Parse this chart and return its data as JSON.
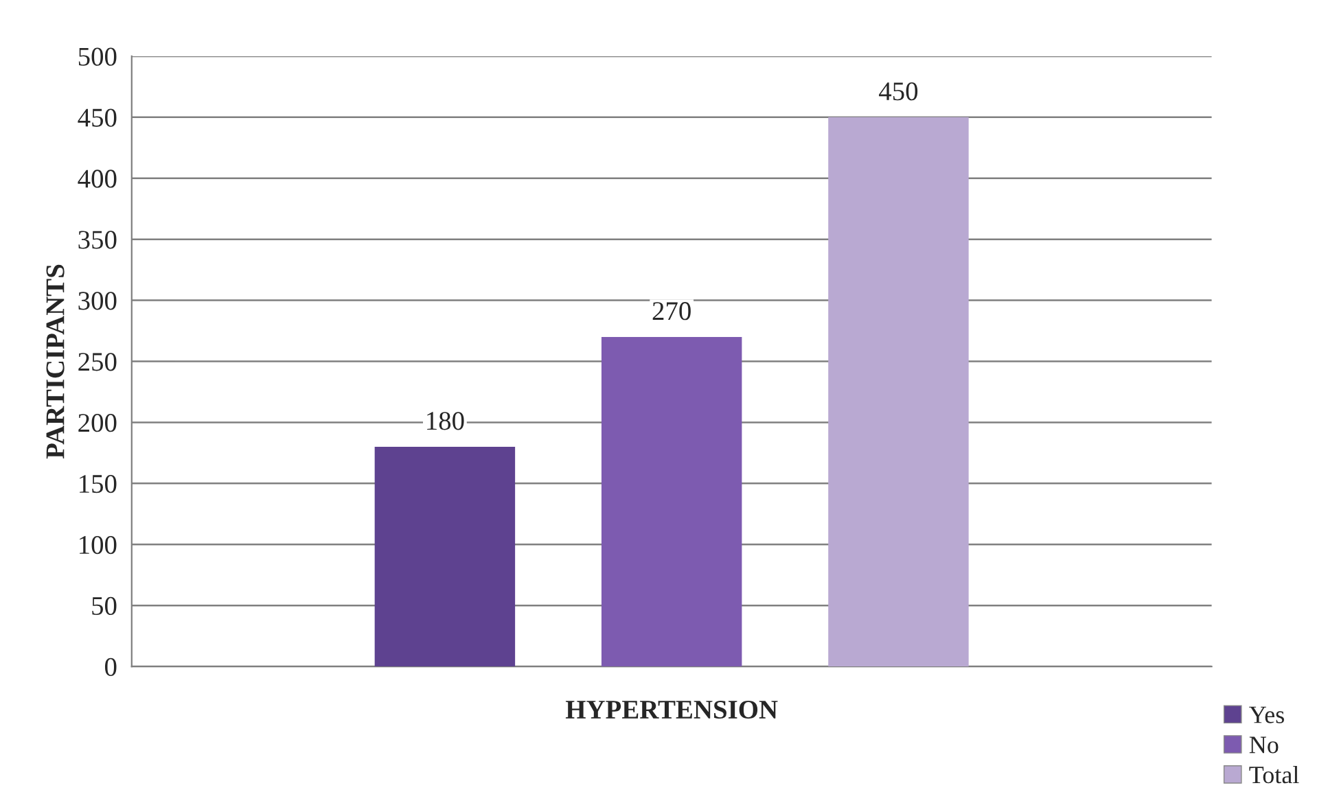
{
  "chart_data": {
    "type": "bar",
    "xlabel": "HYPERTENSION",
    "ylabel": "PARTICIPANTS",
    "categories": [
      null
    ],
    "series": [
      {
        "name": "Yes",
        "color": "#5e4290",
        "values": [
          180
        ]
      },
      {
        "name": "No",
        "color": "#7d5bb0",
        "values": [
          270
        ]
      },
      {
        "name": "Total",
        "color": "#b9a9d2",
        "values": [
          450
        ]
      }
    ],
    "ylim": [
      0,
      500
    ],
    "yticks": [
      0,
      50,
      100,
      150,
      200,
      250,
      300,
      350,
      400,
      450,
      500
    ],
    "grid": "y",
    "legend": "bottom right",
    "data_labels": true
  }
}
